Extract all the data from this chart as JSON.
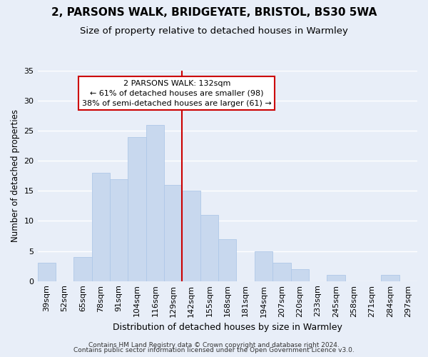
{
  "title": "2, PARSONS WALK, BRIDGEYATE, BRISTOL, BS30 5WA",
  "subtitle": "Size of property relative to detached houses in Warmley",
  "xlabel": "Distribution of detached houses by size in Warmley",
  "ylabel": "Number of detached properties",
  "bar_labels": [
    "39sqm",
    "52sqm",
    "65sqm",
    "78sqm",
    "91sqm",
    "104sqm",
    "116sqm",
    "129sqm",
    "142sqm",
    "155sqm",
    "168sqm",
    "181sqm",
    "194sqm",
    "207sqm",
    "220sqm",
    "233sqm",
    "245sqm",
    "258sqm",
    "271sqm",
    "284sqm",
    "297sqm"
  ],
  "bar_values": [
    3,
    0,
    4,
    18,
    17,
    24,
    26,
    16,
    15,
    11,
    7,
    0,
    5,
    3,
    2,
    0,
    1,
    0,
    0,
    1,
    0
  ],
  "bar_color": "#c8d8ee",
  "bar_edge_color": "#afc8e8",
  "ylim": [
    0,
    35
  ],
  "yticks": [
    0,
    5,
    10,
    15,
    20,
    25,
    30,
    35
  ],
  "vline_index": 7,
  "vline_color": "#cc0000",
  "annotation_title": "2 PARSONS WALK: 132sqm",
  "annotation_line1": "← 61% of detached houses are smaller (98)",
  "annotation_line2": "38% of semi-detached houses are larger (61) →",
  "annotation_box_facecolor": "#ffffff",
  "annotation_box_edgecolor": "#cc0000",
  "footer1": "Contains HM Land Registry data © Crown copyright and database right 2024.",
  "footer2": "Contains public sector information licensed under the Open Government Licence v3.0.",
  "fig_facecolor": "#e8eef8",
  "plot_facecolor": "#e8eef8",
  "grid_color": "#ffffff",
  "title_fontsize": 11,
  "subtitle_fontsize": 9.5,
  "xlabel_fontsize": 9,
  "ylabel_fontsize": 8.5,
  "tick_fontsize": 8,
  "annotation_fontsize": 8,
  "footer_fontsize": 6.5
}
